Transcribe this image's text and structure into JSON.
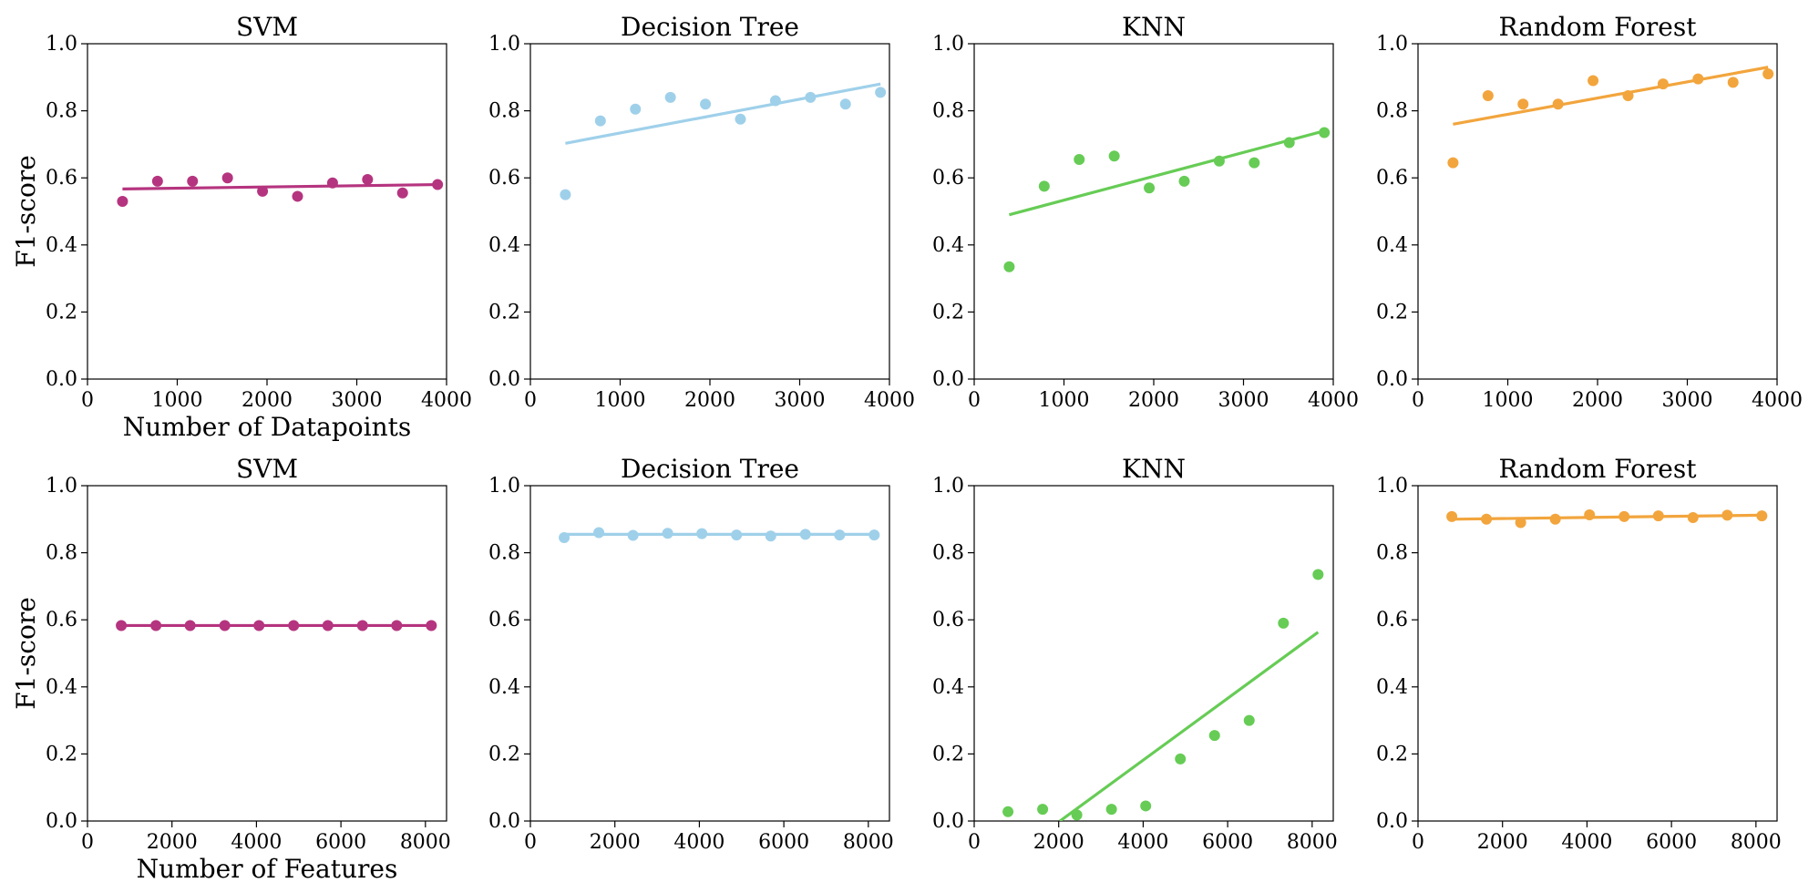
{
  "chart_data": [
    {
      "type": "scatter",
      "title": "SVM",
      "xlabel": "Number of Datapoints",
      "ylabel": "F1-score",
      "xlim": [
        0,
        4000
      ],
      "ylim": [
        0,
        1.0
      ],
      "xticks": [
        "0",
        "1000",
        "2000",
        "3000",
        "4000"
      ],
      "yticks": [
        "0.0",
        "0.2",
        "0.4",
        "0.6",
        "0.8",
        "1.0"
      ],
      "color": "#B5347F",
      "series": [
        {
          "x": [
            390,
            780,
            1170,
            1560,
            1950,
            2340,
            2730,
            3120,
            3510,
            3900
          ],
          "y": [
            0.53,
            0.59,
            0.59,
            0.6,
            0.56,
            0.545,
            0.585,
            0.595,
            0.555,
            0.58
          ]
        }
      ],
      "trend_line": {
        "x": [
          390,
          3900
        ],
        "y": [
          0.567,
          0.58
        ]
      }
    },
    {
      "type": "scatter",
      "title": "Decision Tree",
      "xlabel": "",
      "ylabel": "",
      "xlim": [
        0,
        4000
      ],
      "ylim": [
        0,
        1.0
      ],
      "xticks": [
        "0",
        "1000",
        "2000",
        "3000",
        "4000"
      ],
      "yticks": [
        "0.0",
        "0.2",
        "0.4",
        "0.6",
        "0.8",
        "1.0"
      ],
      "color": "#9FD0EA",
      "series": [
        {
          "x": [
            390,
            780,
            1170,
            1560,
            1950,
            2340,
            2730,
            3120,
            3510,
            3900
          ],
          "y": [
            0.55,
            0.77,
            0.805,
            0.84,
            0.82,
            0.775,
            0.83,
            0.84,
            0.82,
            0.855
          ]
        }
      ],
      "trend_line": {
        "x": [
          390,
          3900
        ],
        "y": [
          0.703,
          0.88
        ]
      }
    },
    {
      "type": "scatter",
      "title": "KNN",
      "xlabel": "",
      "ylabel": "",
      "xlim": [
        0,
        4000
      ],
      "ylim": [
        0,
        1.0
      ],
      "xticks": [
        "0",
        "1000",
        "2000",
        "3000",
        "4000"
      ],
      "yticks": [
        "0.0",
        "0.2",
        "0.4",
        "0.6",
        "0.8",
        "1.0"
      ],
      "color": "#66CC55",
      "series": [
        {
          "x": [
            390,
            780,
            1170,
            1560,
            1950,
            2340,
            2730,
            3120,
            3510,
            3900
          ],
          "y": [
            0.335,
            0.575,
            0.655,
            0.665,
            0.57,
            0.59,
            0.65,
            0.645,
            0.705,
            0.735
          ]
        }
      ],
      "trend_line": {
        "x": [
          390,
          3900
        ],
        "y": [
          0.49,
          0.74
        ]
      }
    },
    {
      "type": "scatter",
      "title": "Random Forest",
      "xlabel": "",
      "ylabel": "",
      "xlim": [
        0,
        4000
      ],
      "ylim": [
        0,
        1.0
      ],
      "xticks": [
        "0",
        "1000",
        "2000",
        "3000",
        "4000"
      ],
      "yticks": [
        "0.0",
        "0.2",
        "0.4",
        "0.6",
        "0.8",
        "1.0"
      ],
      "color": "#F2A53D",
      "series": [
        {
          "x": [
            390,
            780,
            1170,
            1560,
            1950,
            2340,
            2730,
            3120,
            3510,
            3900
          ],
          "y": [
            0.645,
            0.845,
            0.82,
            0.82,
            0.89,
            0.845,
            0.88,
            0.895,
            0.885,
            0.91
          ]
        }
      ],
      "trend_line": {
        "x": [
          390,
          3900
        ],
        "y": [
          0.76,
          0.93
        ]
      }
    },
    {
      "type": "scatter",
      "title": "SVM",
      "xlabel": "Number of Features",
      "ylabel": "F1-score",
      "xlim": [
        0,
        8500
      ],
      "ylim": [
        0,
        1.0
      ],
      "xticks": [
        "0",
        "2000",
        "4000",
        "6000",
        "8000"
      ],
      "yticks": [
        "0.0",
        "0.2",
        "0.4",
        "0.6",
        "0.8",
        "1.0"
      ],
      "color": "#B5347F",
      "series": [
        {
          "x": [
            800,
            1620,
            2430,
            3250,
            4060,
            4880,
            5690,
            6510,
            7320,
            8140
          ],
          "y": [
            0.583,
            0.583,
            0.583,
            0.583,
            0.583,
            0.583,
            0.583,
            0.583,
            0.583,
            0.583
          ]
        }
      ],
      "trend_line": {
        "x": [
          800,
          8140
        ],
        "y": [
          0.583,
          0.583
        ]
      }
    },
    {
      "type": "scatter",
      "title": "Decision Tree",
      "xlabel": "",
      "ylabel": "",
      "xlim": [
        0,
        8500
      ],
      "ylim": [
        0,
        1.0
      ],
      "xticks": [
        "0",
        "2000",
        "4000",
        "6000",
        "8000"
      ],
      "yticks": [
        "0.0",
        "0.2",
        "0.4",
        "0.6",
        "0.8",
        "1.0"
      ],
      "color": "#9FD0EA",
      "series": [
        {
          "x": [
            800,
            1620,
            2430,
            3250,
            4060,
            4880,
            5690,
            6510,
            7320,
            8140
          ],
          "y": [
            0.845,
            0.86,
            0.852,
            0.858,
            0.857,
            0.853,
            0.85,
            0.855,
            0.853,
            0.853
          ]
        }
      ],
      "trend_line": {
        "x": [
          800,
          8140
        ],
        "y": [
          0.855,
          0.855
        ]
      }
    },
    {
      "type": "scatter",
      "title": "KNN",
      "xlabel": "",
      "ylabel": "",
      "xlim": [
        0,
        8500
      ],
      "ylim": [
        0,
        1.0
      ],
      "xticks": [
        "0",
        "2000",
        "4000",
        "6000",
        "8000"
      ],
      "yticks": [
        "0.0",
        "0.2",
        "0.4",
        "0.6",
        "0.8",
        "1.0"
      ],
      "color": "#66CC55",
      "series": [
        {
          "x": [
            800,
            1620,
            2430,
            3250,
            4060,
            4880,
            5690,
            6510,
            7320,
            8140
          ],
          "y": [
            0.028,
            0.035,
            0.018,
            0.035,
            0.045,
            0.185,
            0.255,
            0.3,
            0.59,
            0.735
          ]
        }
      ],
      "trend_line": {
        "x": [
          2030,
          8140
        ],
        "y": [
          0.0,
          0.563
        ]
      }
    },
    {
      "type": "scatter",
      "title": "Random Forest",
      "xlabel": "",
      "ylabel": "",
      "xlim": [
        0,
        8500
      ],
      "ylim": [
        0,
        1.0
      ],
      "xticks": [
        "0",
        "2000",
        "4000",
        "6000",
        "8000"
      ],
      "yticks": [
        "0.0",
        "0.2",
        "0.4",
        "0.6",
        "0.8",
        "1.0"
      ],
      "color": "#F2A53D",
      "series": [
        {
          "x": [
            800,
            1620,
            2430,
            3250,
            4060,
            4880,
            5690,
            6510,
            7320,
            8140
          ],
          "y": [
            0.908,
            0.9,
            0.89,
            0.9,
            0.913,
            0.908,
            0.91,
            0.905,
            0.912,
            0.91
          ]
        }
      ],
      "trend_line": {
        "x": [
          800,
          8140
        ],
        "y": [
          0.9,
          0.912
        ]
      }
    }
  ]
}
